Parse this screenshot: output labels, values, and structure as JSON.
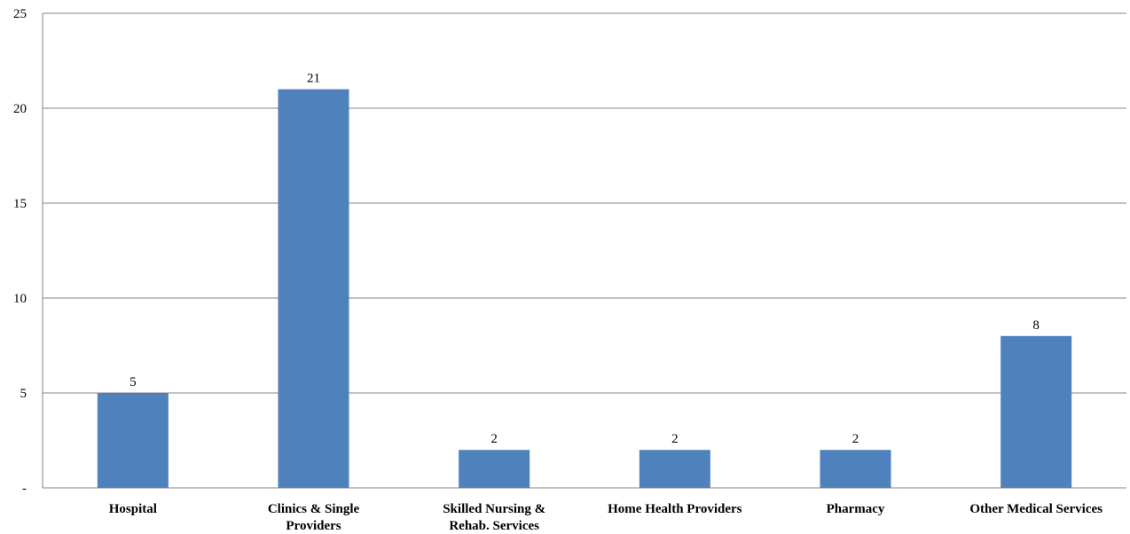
{
  "chart_data": {
    "type": "bar",
    "categories": [
      [
        "Hospital"
      ],
      [
        "Clinics & Single",
        "Providers"
      ],
      [
        "Skilled Nursing &",
        "Rehab. Services"
      ],
      [
        "Home Health Providers"
      ],
      [
        "Pharmacy"
      ],
      [
        "Other Medical Services"
      ]
    ],
    "values": [
      5,
      21,
      2,
      2,
      2,
      8
    ],
    "data_labels": [
      "5",
      "21",
      "2",
      "2",
      "2",
      "8"
    ],
    "y_ticks": [
      {
        "value": 0,
        "label": "-"
      },
      {
        "value": 5,
        "label": "5"
      },
      {
        "value": 10,
        "label": "10"
      },
      {
        "value": 15,
        "label": "15"
      },
      {
        "value": 20,
        "label": "20"
      },
      {
        "value": 25,
        "label": "25"
      }
    ],
    "ylim": [
      0,
      25
    ],
    "grid": true,
    "legend": "none",
    "colors": {
      "bar": "#4f81bd",
      "grid": "#868686",
      "axis": "#868686"
    }
  }
}
